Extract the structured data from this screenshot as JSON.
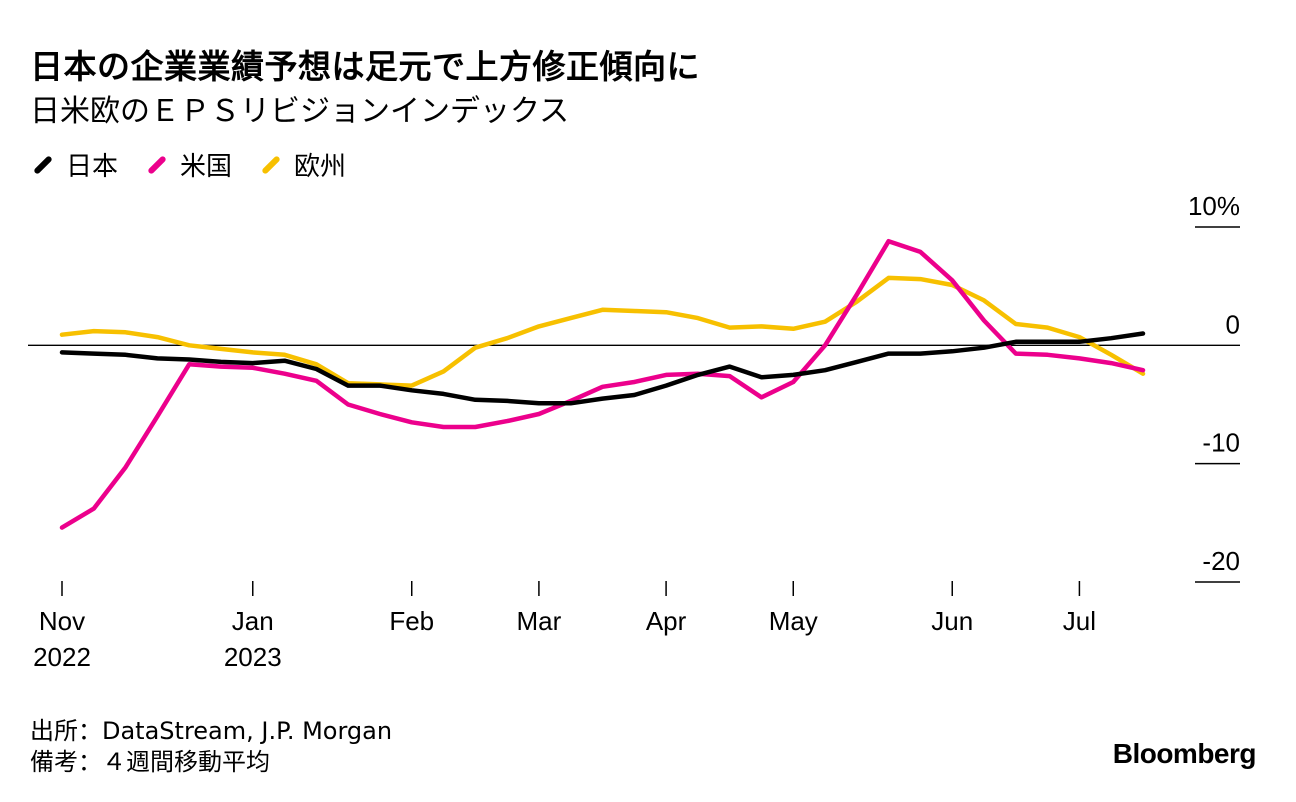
{
  "header": {
    "title": "日本の企業業績予想は足元で上方修正傾向に",
    "subtitle": "日米欧のＥＰＳリビジョンインデックス"
  },
  "legend": [
    {
      "label": "日本",
      "color": "#000000"
    },
    {
      "label": "米国",
      "color": "#ec008c"
    },
    {
      "label": "欧州",
      "color": "#f7c000"
    }
  ],
  "footer": {
    "source": "出所：DataStream, J.P. Morgan",
    "note": "備考：４週間移動平均",
    "brand": "Bloomberg"
  },
  "chart_data": {
    "type": "line",
    "title": "日本の企業業績予想は足元で上方修正傾向に",
    "subtitle": "日米欧のＥＰＳリビジョンインデックス",
    "xlabel": "",
    "ylabel": "",
    "ylim": [
      -20,
      10
    ],
    "y_ticks": [
      {
        "value": 10,
        "label": "10%"
      },
      {
        "value": 0,
        "label": "0"
      },
      {
        "value": -10,
        "label": "-10"
      },
      {
        "value": -20,
        "label": "-20"
      }
    ],
    "x_ticks": [
      {
        "week": 0,
        "line1": "Nov",
        "line2": "2022"
      },
      {
        "week": 6,
        "line1": "Jan",
        "line2": "2023"
      },
      {
        "week": 11,
        "line1": "Feb",
        "line2": ""
      },
      {
        "week": 15,
        "line1": "Mar",
        "line2": ""
      },
      {
        "week": 19,
        "line1": "Apr",
        "line2": ""
      },
      {
        "week": 23,
        "line1": "May",
        "line2": ""
      },
      {
        "week": 28,
        "line1": "Jun",
        "line2": ""
      },
      {
        "week": 32,
        "line1": "Jul",
        "line2": ""
      }
    ],
    "x_range": [
      0,
      34
    ],
    "series": [
      {
        "name": "日本",
        "color": "#000000",
        "values": [
          -0.6,
          -0.7,
          -0.8,
          -1.1,
          -1.2,
          -1.4,
          -1.5,
          -1.3,
          -2.0,
          -3.4,
          -3.4,
          -3.8,
          -4.1,
          -4.6,
          -4.7,
          -4.9,
          -4.9,
          -4.5,
          -4.2,
          -3.4,
          -2.5,
          -1.8,
          -2.7,
          -2.5,
          -2.1,
          -1.4,
          -0.7,
          -0.7,
          -0.5,
          -0.2,
          0.3,
          0.3,
          0.3,
          0.6,
          1.0
        ]
      },
      {
        "name": "米国",
        "color": "#ec008c",
        "values": [
          -15.4,
          -13.8,
          -10.3,
          -6.0,
          -1.6,
          -1.8,
          -1.9,
          -2.4,
          -3.0,
          -5.0,
          -5.8,
          -6.5,
          -6.9,
          -6.9,
          -6.4,
          -5.8,
          -4.7,
          -3.5,
          -3.1,
          -2.5,
          -2.4,
          -2.6,
          -4.4,
          -3.1,
          0.0,
          4.3,
          8.8,
          7.9,
          5.5,
          2.1,
          -0.7,
          -0.8,
          -1.1,
          -1.5,
          -2.1
        ]
      },
      {
        "name": "欧州",
        "color": "#f7c000",
        "values": [
          0.9,
          1.2,
          1.1,
          0.7,
          0.0,
          -0.3,
          -0.6,
          -0.8,
          -1.6,
          -3.2,
          -3.3,
          -3.4,
          -2.2,
          -0.2,
          0.6,
          1.6,
          2.3,
          3.0,
          2.9,
          2.8,
          2.3,
          1.5,
          1.6,
          1.4,
          2.0,
          3.7,
          5.7,
          5.6,
          5.1,
          3.8,
          1.8,
          1.5,
          0.7,
          -0.8,
          -2.4
        ]
      }
    ]
  }
}
